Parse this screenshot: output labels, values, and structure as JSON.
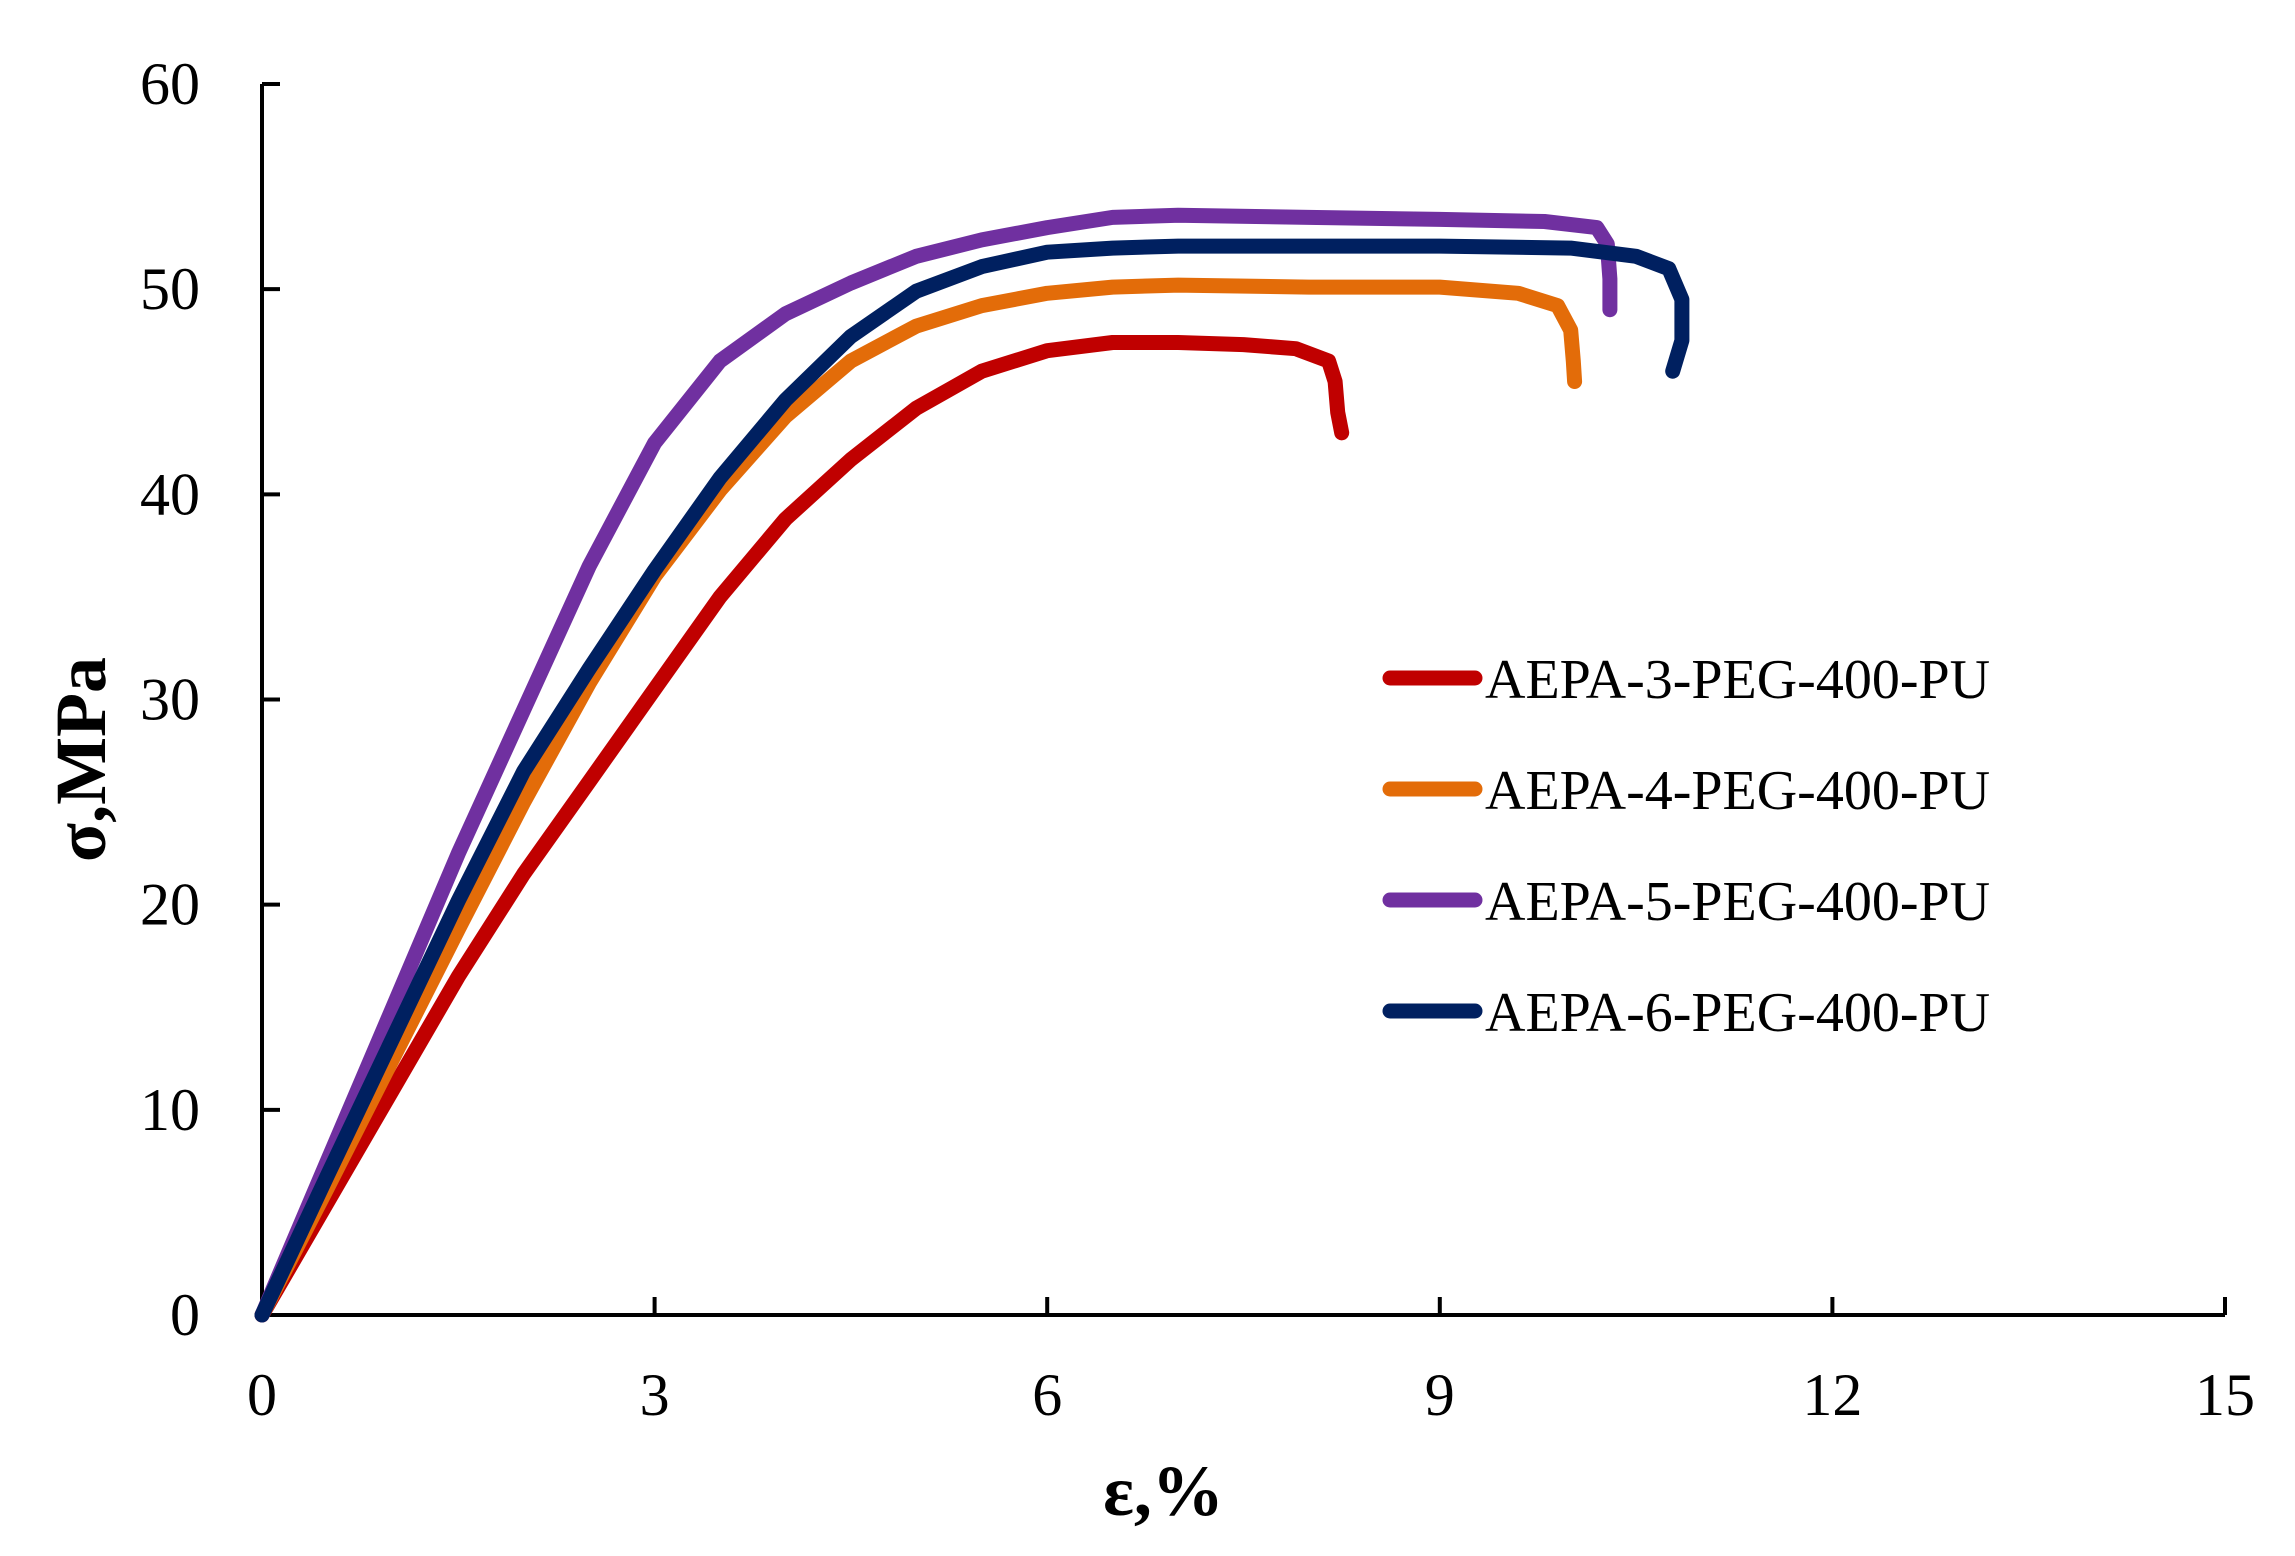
{
  "chart_data": {
    "type": "line",
    "title": "",
    "xlabel": "ε,%",
    "ylabel": "σ,MPa",
    "xlim": [
      0,
      15
    ],
    "ylim": [
      0,
      60
    ],
    "xticks": [
      0,
      3,
      6,
      9,
      12,
      15
    ],
    "yticks": [
      0,
      10,
      20,
      30,
      40,
      50,
      60
    ],
    "xtick_labels": [
      "0",
      "3",
      "6",
      "9",
      "12",
      "15"
    ],
    "ytick_labels": [
      "0",
      "10",
      "20",
      "30",
      "40",
      "50",
      "60"
    ],
    "grid": false,
    "legend_position": "right",
    "series": [
      {
        "name": "AEPA-3-PEG-400-PU",
        "color": "#c00000",
        "x": [
          0,
          0.5,
          1.0,
          1.5,
          2.0,
          2.5,
          3.0,
          3.5,
          4.0,
          4.5,
          5.0,
          5.5,
          6.0,
          6.5,
          7.0,
          7.5,
          7.9,
          8.15,
          8.2,
          8.22,
          8.25
        ],
        "y": [
          0,
          5.5,
          11.0,
          16.5,
          21.5,
          26.0,
          30.5,
          35.0,
          38.8,
          41.7,
          44.2,
          46.0,
          47.0,
          47.4,
          47.4,
          47.3,
          47.1,
          46.5,
          45.5,
          44.0,
          43.0
        ]
      },
      {
        "name": "AEPA-4-PEG-400-PU",
        "color": "#e36c09",
        "x": [
          0,
          0.5,
          1.0,
          1.5,
          2.0,
          2.5,
          3.0,
          3.5,
          4.0,
          4.5,
          5.0,
          5.5,
          6.0,
          6.5,
          7.0,
          8.0,
          9.0,
          9.6,
          9.9,
          10.0,
          10.02,
          10.03
        ],
        "y": [
          0,
          6.2,
          12.5,
          18.8,
          25.0,
          30.8,
          36.0,
          40.2,
          43.8,
          46.5,
          48.2,
          49.2,
          49.8,
          50.1,
          50.2,
          50.1,
          50.1,
          49.8,
          49.2,
          48.0,
          46.5,
          45.5
        ]
      },
      {
        "name": "AEPA-5-PEG-400-PU",
        "color": "#7030a0",
        "x": [
          0,
          0.5,
          1.0,
          1.5,
          2.0,
          2.5,
          3.0,
          3.5,
          4.0,
          4.5,
          5.0,
          5.5,
          6.0,
          6.5,
          7.0,
          8.0,
          9.0,
          9.8,
          10.2,
          10.28,
          10.3,
          10.3
        ],
        "y": [
          0,
          7.5,
          15.0,
          22.5,
          29.5,
          36.5,
          42.5,
          46.5,
          48.8,
          50.3,
          51.6,
          52.4,
          53.0,
          53.5,
          53.6,
          53.5,
          53.4,
          53.3,
          53.0,
          52.2,
          50.5,
          49.0
        ]
      },
      {
        "name": "AEPA-6-PEG-400-PU",
        "color": "#002060",
        "x": [
          0,
          0.5,
          1.0,
          1.5,
          2.0,
          2.5,
          3.0,
          3.5,
          4.0,
          4.5,
          5.0,
          5.5,
          6.0,
          6.5,
          7.0,
          8.0,
          9.0,
          10.0,
          10.5,
          10.75,
          10.85,
          10.85,
          10.78
        ],
        "y": [
          0,
          6.8,
          13.5,
          20.2,
          26.5,
          31.5,
          36.3,
          40.8,
          44.6,
          47.7,
          49.9,
          51.1,
          51.8,
          52.0,
          52.1,
          52.1,
          52.1,
          52.0,
          51.6,
          51.0,
          49.5,
          47.5,
          46.0
        ]
      }
    ]
  }
}
